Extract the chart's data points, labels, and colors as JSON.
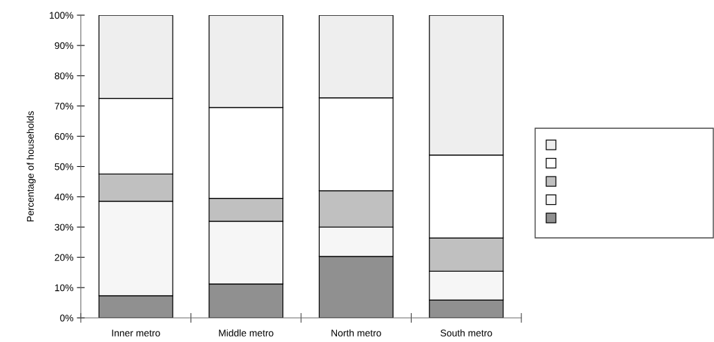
{
  "chart_data": {
    "type": "bar",
    "stacked": true,
    "ylabel": "Percentage of households",
    "categories": [
      "Inner metro",
      "Middle metro",
      "North metro",
      "South metro"
    ],
    "series": [
      {
        "color": "#909090",
        "values": [
          7.3,
          11.2,
          20.3,
          5.9
        ]
      },
      {
        "color": "#f6f6f6",
        "values": [
          31.2,
          20.7,
          9.7,
          9.5
        ]
      },
      {
        "color": "#c0c0c0",
        "values": [
          9,
          7.6,
          12,
          11
        ]
      },
      {
        "color": "#ffffff",
        "values": [
          25,
          30,
          30.7,
          27.4
        ]
      },
      {
        "color": "#eeeeee",
        "values": [
          27.5,
          30.5,
          27.3,
          46.2
        ]
      }
    ],
    "ylim": [
      0,
      100
    ],
    "yticks": [
      {
        "value": 0,
        "label": "0%"
      },
      {
        "value": 10,
        "label": "10%"
      },
      {
        "value": 20,
        "label": "20%"
      },
      {
        "value": 30,
        "label": "30%"
      },
      {
        "value": 40,
        "label": "40%"
      },
      {
        "value": 50,
        "label": "50%"
      },
      {
        "value": 60,
        "label": "60%"
      },
      {
        "value": 70,
        "label": "70%"
      },
      {
        "value": 80,
        "label": "80%"
      },
      {
        "value": 90,
        "label": "90%"
      },
      {
        "value": 100,
        "label": "100%"
      }
    ],
    "grid": false
  }
}
